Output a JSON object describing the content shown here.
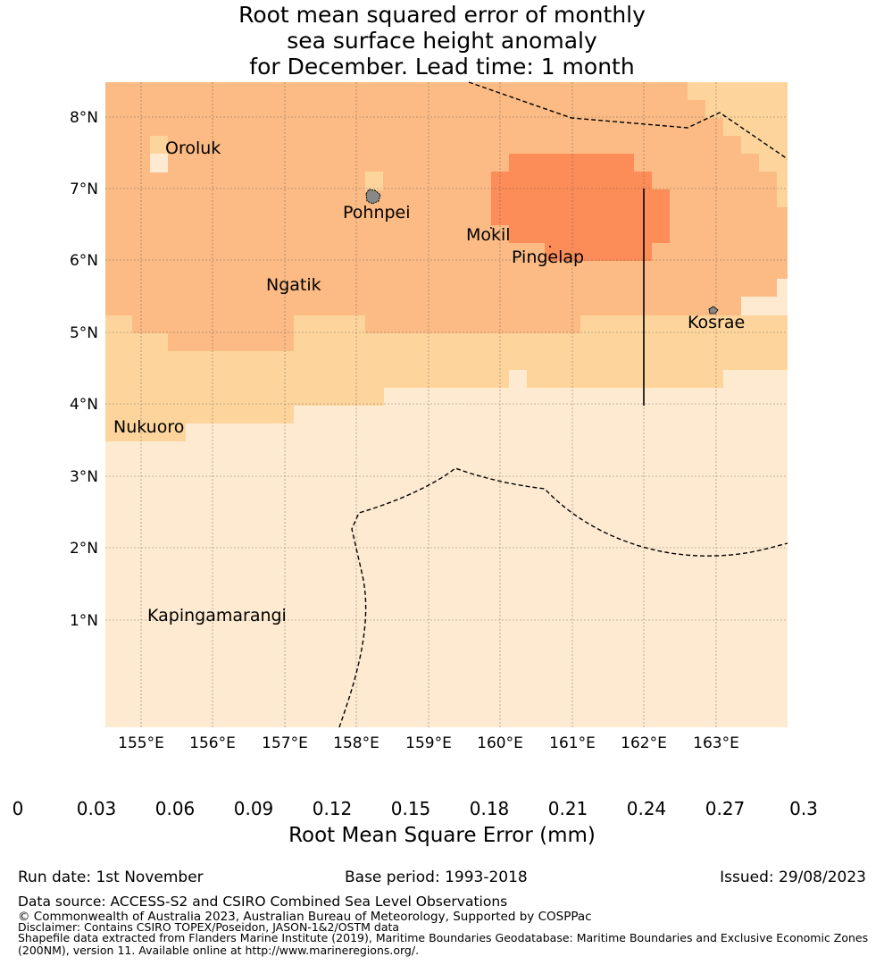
{
  "title": {
    "line1": "Root mean squared error of monthly",
    "line2": "sea surface height anomaly",
    "line3": "for December. Lead time: 1 month"
  },
  "map": {
    "lat_labels": [
      "8°N",
      "7°N",
      "6°N",
      "5°N",
      "4°N",
      "3°N",
      "2°N",
      "1°N"
    ],
    "lon_labels": [
      "155°E",
      "156°E",
      "157°E",
      "158°E",
      "159°E",
      "160°E",
      "161°E",
      "162°E",
      "163°E"
    ],
    "places": [
      "Oroluk",
      "Pohnpei",
      "Mokil",
      "Pingelap",
      "Ngatik",
      "Kosrae",
      "Nukuoro",
      "Kapingamarangi"
    ],
    "colors": {
      "c1": "#feead0",
      "c2": "#fdd59c",
      "c3": "#fcbb84",
      "c4": "#fc8d59",
      "land": "#888888"
    }
  },
  "colorbar": {
    "ticks": [
      "0",
      "0.03",
      "0.06",
      "0.09",
      "0.12",
      "0.15",
      "0.18",
      "0.21",
      "0.24",
      "0.27",
      "0.3"
    ],
    "colors": [
      "#fff2e2",
      "#feead0",
      "#fdd59c",
      "#fcbb84",
      "#fc8d59",
      "#fc6a4a",
      "#f84d3c",
      "#d7301f",
      "#c8090e",
      "#b00000"
    ],
    "extend_color": "#7f0000",
    "label": "Root Mean Square Error (mm)"
  },
  "footer": {
    "run_date": "Run date: 1st November",
    "base_period": "Base period: 1993-2018",
    "issued": "Issued: 29/08/2023",
    "data_source": "Data source: ACCESS-S2 and CSIRO Combined Sea Level Observations",
    "copyright": "© Commonwealth of Australia 2023, Australian Bureau of Meteorology, Supported by COSPPac",
    "disclaimer": "Disclaimer: Contains CSIRO TOPEX/Poseidon, JASON-1&2/OSTM data",
    "shapefile1": "Shapefile data extracted from Flanders Marine Institute (2019), Maritime Boundaries Geodatabase: Maritime Boundaries and Exclusive Economic Zones",
    "shapefile2": "(200NM), version 11. Available online at http://www.marineregions.org/."
  }
}
